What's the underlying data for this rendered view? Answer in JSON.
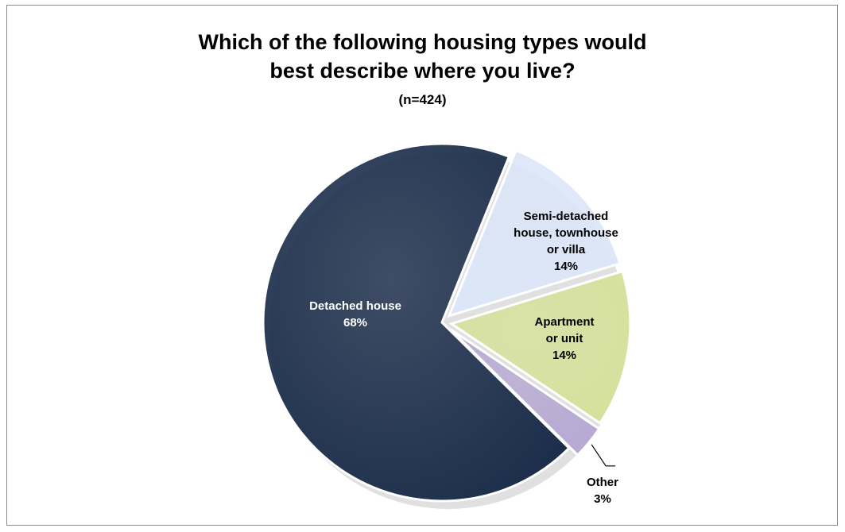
{
  "chart_data": {
    "type": "pie",
    "title_lines": [
      "Which of the following  housing types would",
      "best describe where you live?"
    ],
    "subtitle": "(n=424)",
    "slices": [
      {
        "label_lines": [
          "Detached house"
        ],
        "value": 68,
        "value_label": "68%",
        "color": "#1b2d4a",
        "label_color": "#ffffff"
      },
      {
        "label_lines": [
          "Semi-detached",
          "house, townhouse",
          "or villa"
        ],
        "value": 14,
        "value_label": "14%",
        "color": "#dbe6f8",
        "label_color": "#000000"
      },
      {
        "label_lines": [
          "Apartment",
          "or unit"
        ],
        "value": 14,
        "value_label": "14%",
        "color": "#d6e19c",
        "label_color": "#000000"
      },
      {
        "label_lines": [
          "Other"
        ],
        "value": 3,
        "value_label": "3%",
        "color": "#b7a9d3",
        "label_color": "#000000"
      }
    ],
    "legend": "none"
  }
}
